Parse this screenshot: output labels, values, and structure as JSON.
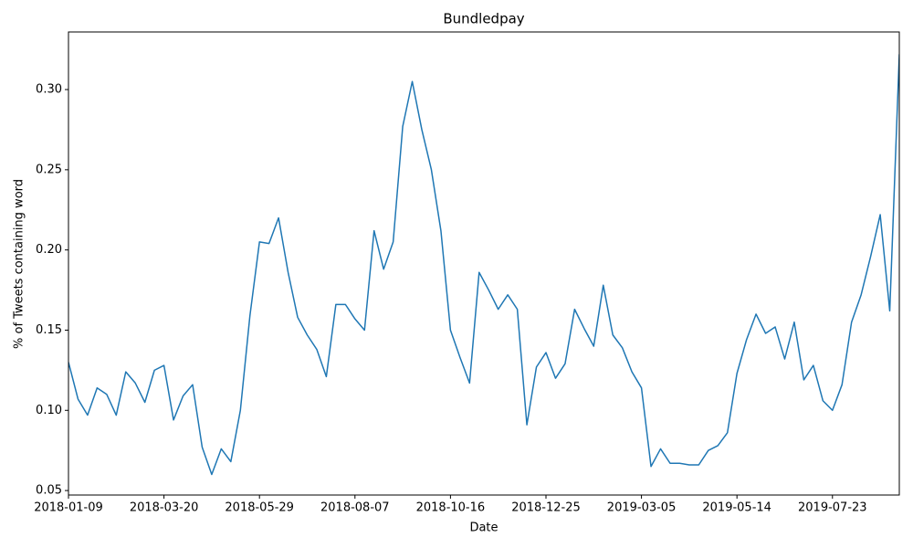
{
  "chart_data": {
    "type": "line",
    "title": "Bundledpay",
    "x_label": "Date",
    "y_label": "% of Tweets containing word",
    "color": "#1f77b4",
    "x": [
      "2018-01-09",
      "2018-01-16",
      "2018-01-23",
      "2018-01-30",
      "2018-02-06",
      "2018-02-13",
      "2018-02-20",
      "2018-02-27",
      "2018-03-06",
      "2018-03-13",
      "2018-03-20",
      "2018-03-27",
      "2018-04-03",
      "2018-04-10",
      "2018-04-17",
      "2018-04-24",
      "2018-05-01",
      "2018-05-08",
      "2018-05-15",
      "2018-05-22",
      "2018-05-29",
      "2018-06-05",
      "2018-06-12",
      "2018-06-19",
      "2018-06-26",
      "2018-07-03",
      "2018-07-10",
      "2018-07-17",
      "2018-07-24",
      "2018-07-31",
      "2018-08-07",
      "2018-08-14",
      "2018-08-21",
      "2018-08-28",
      "2018-09-04",
      "2018-09-11",
      "2018-09-18",
      "2018-09-25",
      "2018-10-02",
      "2018-10-09",
      "2018-10-16",
      "2018-10-23",
      "2018-10-30",
      "2018-11-06",
      "2018-11-13",
      "2018-11-20",
      "2018-11-27",
      "2018-12-04",
      "2018-12-11",
      "2018-12-18",
      "2018-12-25",
      "2019-01-01",
      "2019-01-08",
      "2019-01-15",
      "2019-01-22",
      "2019-01-29",
      "2019-02-05",
      "2019-02-12",
      "2019-02-19",
      "2019-02-26",
      "2019-03-05",
      "2019-03-12",
      "2019-03-19",
      "2019-03-26",
      "2019-04-02",
      "2019-04-09",
      "2019-04-16",
      "2019-04-23",
      "2019-04-30",
      "2019-05-07",
      "2019-05-14",
      "2019-05-21",
      "2019-05-28",
      "2019-06-04",
      "2019-06-11",
      "2019-06-18",
      "2019-06-25",
      "2019-07-02",
      "2019-07-09",
      "2019-07-16",
      "2019-07-23",
      "2019-07-30",
      "2019-08-06",
      "2019-08-13",
      "2019-08-20",
      "2019-08-27",
      "2019-09-03",
      "2019-09-10"
    ],
    "values": [
      0.13,
      0.107,
      0.097,
      0.114,
      0.11,
      0.097,
      0.124,
      0.117,
      0.105,
      0.125,
      0.128,
      0.094,
      0.109,
      0.116,
      0.077,
      0.06,
      0.076,
      0.068,
      0.1,
      0.159,
      0.205,
      0.204,
      0.22,
      0.186,
      0.158,
      0.147,
      0.138,
      0.121,
      0.166,
      0.166,
      0.157,
      0.15,
      0.212,
      0.188,
      0.205,
      0.277,
      0.305,
      0.275,
      0.25,
      0.212,
      0.15,
      0.133,
      0.117,
      0.186,
      0.175,
      0.163,
      0.172,
      0.163,
      0.091,
      0.127,
      0.136,
      0.12,
      0.129,
      0.163,
      0.151,
      0.14,
      0.178,
      0.147,
      0.139,
      0.124,
      0.114,
      0.065,
      0.076,
      0.067,
      0.067,
      0.066,
      0.066,
      0.075,
      0.078,
      0.086,
      0.123,
      0.144,
      0.16,
      0.148,
      0.152,
      0.132,
      0.155,
      0.119,
      0.128,
      0.106,
      0.1,
      0.116,
      0.155,
      0.172,
      0.196,
      0.222,
      0.162,
      0.322
    ],
    "xlim": [
      "2018-01-09",
      "2019-09-10"
    ],
    "xticks": [
      "2018-01-09",
      "2018-03-20",
      "2018-05-29",
      "2018-08-07",
      "2018-10-16",
      "2018-12-25",
      "2019-03-05",
      "2019-05-14",
      "2019-07-23"
    ],
    "ylim": [
      0.0472,
      0.3359
    ],
    "yticks": [
      0.05,
      {
        "value": 0.1,
        "label": "0.10"
      },
      0.15,
      {
        "value": 0.2,
        "label": "0.20"
      },
      0.25,
      {
        "value": 0.3,
        "label": "0.30"
      }
    ],
    "grid": false
  }
}
